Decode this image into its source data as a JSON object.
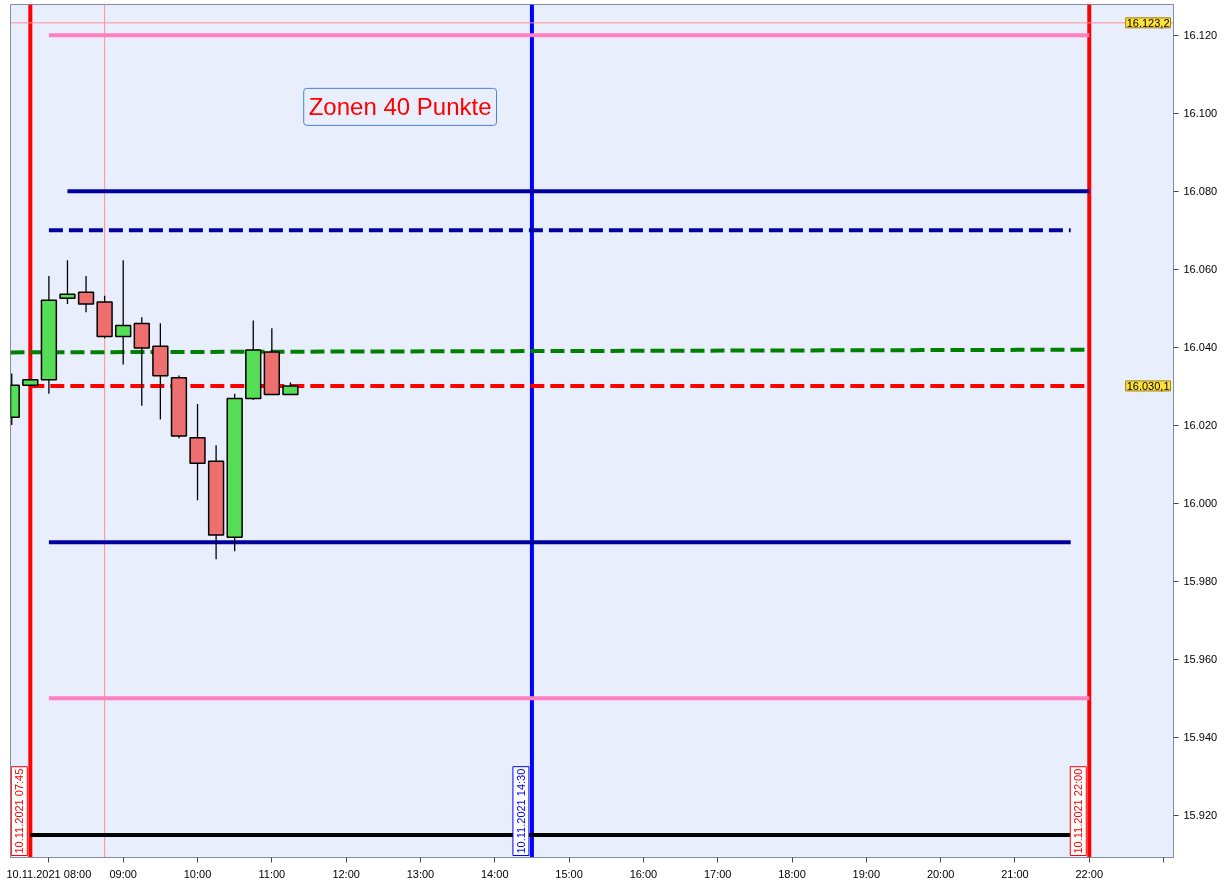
{
  "chart_data": {
    "type": "candlestick",
    "x": [
      "2021-11-10T07:30",
      "2021-11-10T07:45",
      "2021-11-10T08:00",
      "2021-11-10T08:15",
      "2021-11-10T08:30",
      "2021-11-10T08:45",
      "2021-11-10T09:00",
      "2021-11-10T09:15",
      "2021-11-10T09:30",
      "2021-11-10T09:45",
      "2021-11-10T10:00",
      "2021-11-10T10:15",
      "2021-11-10T10:30",
      "2021-11-10T10:45",
      "2021-11-10T11:00",
      "2021-11-10T11:15"
    ],
    "ohlc": [
      [
        16022.1,
        16033.3,
        16020.1,
        16030.3
      ],
      [
        16030.3,
        16031.9,
        16030.0,
        16031.7
      ],
      [
        16031.7,
        16058.3,
        16028.1,
        16052.1
      ],
      [
        16052.6,
        16062.3,
        16051.1,
        16053.6
      ],
      [
        16054.1,
        16058.3,
        16049.0,
        16051.1
      ],
      [
        16051.6,
        16053.2,
        16042.3,
        16042.8
      ],
      [
        16042.8,
        16062.3,
        16035.6,
        16045.6
      ],
      [
        16046.1,
        16047.7,
        16025.0,
        16039.8
      ],
      [
        16040.3,
        16046.2,
        16021.5,
        16032.7
      ],
      [
        16032.2,
        16032.8,
        16016.7,
        16017.3
      ],
      [
        16016.8,
        16025.5,
        16000.8,
        16010.3
      ],
      [
        16010.8,
        16014.9,
        15985.7,
        15991.9
      ],
      [
        15991.3,
        16028.1,
        15987.7,
        16026.9
      ],
      [
        16026.9,
        16046.9,
        16026.5,
        16039.3
      ],
      [
        16038.8,
        16044.9,
        16027.9,
        16027.9
      ],
      [
        16027.9,
        16031.0,
        16027.9,
        16030.1
      ]
    ],
    "colors": [
      "#55dd55",
      "#55dd55",
      "#55dd55",
      "#55dd55",
      "#ee6f6f",
      "#ee6f6f",
      "#55dd55",
      "#ee6f6f",
      "#ee6f6f",
      "#ee6f6f",
      "#ee6f6f",
      "#ee6f6f",
      "#55dd55",
      "#55dd55",
      "#ee6f6f",
      "#55dd55"
    ],
    "series": [
      {
        "type": "line",
        "x": [
          "2021-11-10T08:00",
          "2021-11-10T22:00"
        ],
        "values": [
          16120,
          16120
        ],
        "color": "#ff80c0",
        "line_style": "solid"
      },
      {
        "type": "line",
        "x": [
          "2021-11-10T08:15",
          "2021-11-10T22:00"
        ],
        "values": [
          16080,
          16080
        ],
        "color": "#0000a0",
        "line_style": "solid"
      },
      {
        "type": "line",
        "x": [
          "2021-11-10T08:00",
          "2021-11-10T21:45"
        ],
        "values": [
          16070,
          16070
        ],
        "color": "#0000a0",
        "line_style": "dashed"
      },
      {
        "type": "line",
        "x": [
          "2021-11-10T07:29",
          "2021-11-10T22:00"
        ],
        "values": [
          16038.7,
          16039.4
        ],
        "color": "#008000",
        "line_style": "dashed"
      },
      {
        "type": "line",
        "x": [
          "2021-11-10T07:45",
          "2021-11-10T22:00"
        ],
        "values": [
          16030.1,
          16030.1
        ],
        "color": "#ff0000",
        "line_style": "dashed"
      },
      {
        "type": "line",
        "x": [
          "2021-11-10T08:00",
          "2021-11-10T21:45"
        ],
        "values": [
          15990,
          15990
        ],
        "color": "#0000a0",
        "line_style": "solid"
      },
      {
        "type": "line",
        "x": [
          "2021-11-10T08:00",
          "2021-11-10T22:00"
        ],
        "values": [
          15950,
          15950
        ],
        "color": "#ff80c0",
        "line_style": "solid"
      },
      {
        "type": "line",
        "x": [
          "2021-11-10T07:45",
          "2021-11-10T21:45"
        ],
        "values": [
          15915,
          15915
        ],
        "color": "#000000",
        "line_style": "solid"
      }
    ],
    "xlim": [
      "2021-11-10T07:29",
      "2021-11-10T23:08"
    ],
    "ylim": [
      15909.2,
      16127.9
    ],
    "xticks": [
      {
        "value": "2021-11-10T08:00",
        "label": "10.11.2021 08:00"
      },
      {
        "value": "2021-11-10T09:00",
        "label": "09:00"
      },
      {
        "value": "2021-11-10T10:00",
        "label": "10:00"
      },
      {
        "value": "2021-11-10T11:00",
        "label": "11:00"
      },
      {
        "value": "2021-11-10T12:00",
        "label": "12:00"
      },
      {
        "value": "2021-11-10T13:00",
        "label": "13:00"
      },
      {
        "value": "2021-11-10T14:00",
        "label": "14:00"
      },
      {
        "value": "2021-11-10T15:00",
        "label": "15:00"
      },
      {
        "value": "2021-11-10T16:00",
        "label": "16:00"
      },
      {
        "value": "2021-11-10T17:00",
        "label": "17:00"
      },
      {
        "value": "2021-11-10T18:00",
        "label": "18:00"
      },
      {
        "value": "2021-11-10T19:00",
        "label": "19:00"
      },
      {
        "value": "2021-11-10T20:00",
        "label": "20:00"
      },
      {
        "value": "2021-11-10T21:00",
        "label": "21:00"
      },
      {
        "value": "2021-11-10T22:00",
        "label": "22:00"
      },
      {
        "value": "2021-11-10T23:00",
        "label": null
      }
    ],
    "yticks": [
      {
        "value": 15920,
        "label": "15.920"
      },
      {
        "value": 15940,
        "label": "15.940"
      },
      {
        "value": 15960,
        "label": "15.960"
      },
      {
        "value": 15980,
        "label": "15.980"
      },
      {
        "value": 16000,
        "label": "16.000"
      },
      {
        "value": 16020,
        "label": "16.020"
      },
      {
        "value": 16040,
        "label": "16.040"
      },
      {
        "value": 16060,
        "label": "16.060"
      },
      {
        "value": 16080,
        "label": "16.080"
      },
      {
        "value": 16100,
        "label": "16.100"
      },
      {
        "value": 16120,
        "label": "16.120"
      }
    ],
    "ref_lines": [
      {
        "axis": "x",
        "value": "2021-11-10T07:45",
        "label": "10.11.2021 07:45",
        "color": "#ff0000"
      },
      {
        "axis": "x",
        "value": "2021-11-10T14:30",
        "label": "10.11.2021 14:30",
        "color": "#0000ff"
      },
      {
        "axis": "x",
        "value": "2021-11-10T22:00",
        "label": "10.11.2021 22:00",
        "color": "#ff0000"
      },
      {
        "axis": "x",
        "value": "2021-11-10T08:45",
        "label": null,
        "color": "#ff9090"
      },
      {
        "axis": "y",
        "value": 16123.2,
        "label": null,
        "color": "#ff9090"
      }
    ],
    "annotations": [
      "Zonen 40 Punkte",
      {
        "text": "16.123,2",
        "y": 16123.2
      },
      "16.030,1"
    ]
  }
}
